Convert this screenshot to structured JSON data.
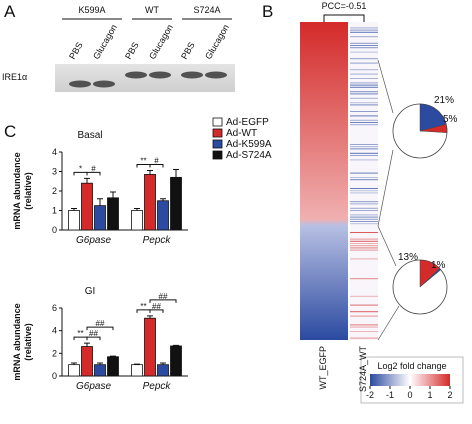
{
  "panel_labels": [
    "A",
    "B",
    "C"
  ],
  "blot": {
    "groups": [
      "K599A",
      "WT",
      "S724A"
    ],
    "lanes": [
      "PBS",
      "Glucagon",
      "PBS",
      "Glucagon",
      "PBS",
      "Glucagon"
    ],
    "protein": "IRE1α"
  },
  "heatmap": {
    "annotation": "PCC=-0.51",
    "columns": [
      "WT_EGFP",
      "S724A_WT"
    ],
    "colorbar": {
      "title": "Log2 fold change",
      "lim": [
        -2,
        2
      ],
      "ticks": [
        -2,
        -1,
        0,
        1,
        2
      ]
    }
  },
  "chart_data": [
    {
      "type": "bar",
      "title": "Basal",
      "ylabel": [
        "mRNA abundance",
        "(relative)"
      ],
      "categories": [
        "G6pase",
        "Pepck"
      ],
      "ylim": [
        0,
        4
      ],
      "yticks": [
        0,
        1,
        2,
        3,
        4
      ],
      "series": [
        {
          "name": "Ad-EGFP",
          "color": "#ffffff",
          "values": [
            1.0,
            1.0
          ],
          "errors": [
            0.1,
            0.1
          ]
        },
        {
          "name": "Ad-WT",
          "color": "#d42a2a",
          "values": [
            2.4,
            2.85
          ],
          "errors": [
            0.25,
            0.2
          ]
        },
        {
          "name": "Ad-K599A",
          "color": "#2b4aa0",
          "values": [
            1.25,
            1.5
          ],
          "errors": [
            0.35,
            0.1
          ]
        },
        {
          "name": "Ad-S724A",
          "color": "#111111",
          "values": [
            1.65,
            2.7
          ],
          "errors": [
            0.3,
            0.4
          ]
        }
      ],
      "annotations": [
        {
          "text": "*",
          "category": 0,
          "pair": [
            0,
            1
          ]
        },
        {
          "text": "#",
          "category": 0,
          "pair": [
            1,
            2
          ]
        },
        {
          "text": "**",
          "category": 1,
          "pair": [
            0,
            1
          ]
        },
        {
          "text": "#",
          "category": 1,
          "pair": [
            1,
            2
          ]
        }
      ]
    },
    {
      "type": "bar",
      "title": "GI",
      "ylabel": [
        "mRNA abundance",
        "(relative)"
      ],
      "categories": [
        "G6pase",
        "Pepck"
      ],
      "ylim": [
        0,
        6
      ],
      "yticks": [
        0,
        2,
        4,
        6
      ],
      "series": [
        {
          "color": "#ffffff",
          "values": [
            1.0,
            1.0
          ],
          "errors": [
            0.15,
            0.05
          ]
        },
        {
          "color": "#d42a2a",
          "values": [
            2.6,
            5.1
          ],
          "errors": [
            0.3,
            0.2
          ]
        },
        {
          "color": "#2b4aa0",
          "values": [
            1.0,
            1.0
          ],
          "errors": [
            0.15,
            0.15
          ]
        },
        {
          "color": "#111111",
          "values": [
            1.7,
            2.65
          ],
          "errors": [
            0.05,
            0.05
          ]
        }
      ],
      "annotations": [
        {
          "text": "**",
          "category": 0,
          "pair": [
            0,
            1
          ]
        },
        {
          "text": "##",
          "category": 0,
          "pair": [
            1,
            2
          ]
        },
        {
          "text": "##",
          "category": 0,
          "pair": [
            1,
            3
          ]
        },
        {
          "text": "**",
          "category": 1,
          "pair": [
            0,
            1
          ]
        },
        {
          "text": "##",
          "category": 1,
          "pair": [
            1,
            2
          ]
        },
        {
          "text": "##",
          "category": 1,
          "pair": [
            1,
            3
          ]
        }
      ]
    },
    {
      "type": "pie",
      "values": [
        21,
        5
      ],
      "value_labels": [
        "21%",
        "5%"
      ],
      "colors": [
        "#2b4aa0",
        "#d42a2a"
      ]
    },
    {
      "type": "pie",
      "values": [
        13,
        1
      ],
      "value_labels": [
        "13%",
        "1%"
      ],
      "colors": [
        "#d42a2a",
        "#2b4aa0"
      ]
    }
  ]
}
